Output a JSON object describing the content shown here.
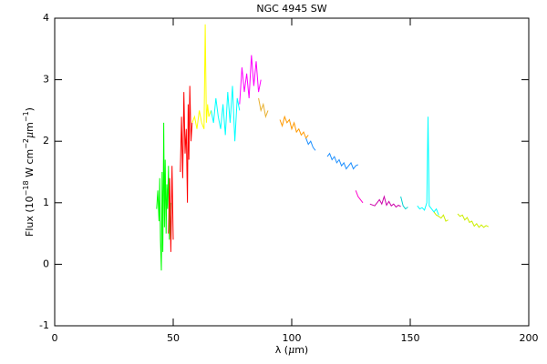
{
  "chart_data": {
    "type": "line",
    "title": "NGC 4945 SW",
    "xlabel": [
      "λ (",
      "μ",
      "m)"
    ],
    "ylabel": [
      "Flux (10",
      "−18",
      " W cm",
      "−2",
      "μ",
      "m",
      "−1",
      ")"
    ],
    "xlim": [
      0,
      200
    ],
    "xticks": [
      0,
      50,
      100,
      150,
      200
    ],
    "ylim": [
      -1,
      4
    ],
    "yticks": [
      -1,
      0,
      1,
      2,
      3,
      4
    ],
    "series": [
      {
        "color": "#00ff00",
        "x": [
          43,
          43.5,
          44,
          44.3,
          44.6,
          45,
          45.3,
          45.6,
          46,
          46.3,
          46.6,
          47,
          47.3,
          47.6,
          48,
          48.4,
          48.8
        ],
        "values": [
          0.9,
          1.2,
          0.7,
          1.4,
          0.4,
          -0.1,
          1.5,
          0.2,
          2.3,
          0.6,
          1.7,
          0.5,
          1.3,
          0.9,
          1.6,
          0.4,
          1.0
        ]
      },
      {
        "color": "#ff0000",
        "x": [
          48,
          48.5,
          49,
          49.5,
          50
        ],
        "values": [
          0.5,
          1.4,
          0.2,
          1.6,
          0.4
        ]
      },
      {
        "color": "#ff0000",
        "x": [
          53,
          53.5,
          54,
          54.5,
          55,
          55.5,
          56,
          56.3,
          56.6,
          57,
          57.5,
          58
        ],
        "values": [
          1.5,
          2.4,
          1.4,
          2.8,
          1.8,
          2.2,
          1.0,
          2.6,
          1.7,
          2.9,
          2.0,
          2.3
        ]
      },
      {
        "color": "#ffff00",
        "x": [
          58,
          59,
          60,
          61,
          62,
          63,
          63.5,
          64,
          64.5,
          65,
          66
        ],
        "values": [
          2.3,
          2.4,
          2.2,
          2.5,
          2.3,
          2.2,
          3.9,
          2.3,
          2.6,
          2.4,
          2.5
        ]
      },
      {
        "color": "#00ffff",
        "x": [
          66,
          67,
          68,
          69,
          70,
          71,
          72,
          73,
          74,
          75,
          76,
          77,
          78
        ],
        "values": [
          2.5,
          2.3,
          2.7,
          2.4,
          2.2,
          2.6,
          2.1,
          2.8,
          2.3,
          2.9,
          2.0,
          2.7,
          2.5
        ]
      },
      {
        "color": "#ff00ff",
        "x": [
          78,
          79,
          80,
          81,
          82,
          83,
          84,
          85,
          86,
          87
        ],
        "values": [
          2.6,
          3.2,
          2.8,
          3.1,
          2.7,
          3.4,
          2.9,
          3.3,
          2.8,
          3.0
        ]
      },
      {
        "color": "#e8b030",
        "x": [
          86,
          87,
          88,
          89,
          90
        ],
        "values": [
          2.7,
          2.5,
          2.6,
          2.4,
          2.5
        ]
      },
      {
        "color": "#ff9900",
        "x": [
          95,
          96,
          97,
          98,
          99,
          100,
          101,
          102,
          103,
          104,
          105,
          106,
          107
        ],
        "values": [
          2.35,
          2.25,
          2.4,
          2.3,
          2.35,
          2.2,
          2.3,
          2.15,
          2.2,
          2.1,
          2.15,
          2.05,
          2.1
        ]
      },
      {
        "color": "#1e90ff",
        "x": [
          106,
          107,
          108,
          109,
          110
        ],
        "values": [
          2.05,
          1.95,
          2.0,
          1.9,
          1.85
        ]
      },
      {
        "color": "#1e90ff",
        "x": [
          115,
          116,
          117,
          118,
          119,
          120,
          121,
          122,
          123,
          124,
          125,
          126,
          127,
          128
        ],
        "values": [
          1.75,
          1.8,
          1.7,
          1.75,
          1.65,
          1.7,
          1.6,
          1.65,
          1.55,
          1.6,
          1.65,
          1.55,
          1.6,
          1.62
        ]
      },
      {
        "color": "#ff00cc",
        "x": [
          127,
          128,
          129,
          130
        ],
        "values": [
          1.2,
          1.1,
          1.05,
          1.0
        ]
      },
      {
        "color": "#cc00aa",
        "x": [
          133,
          135,
          137,
          138,
          139,
          140,
          141,
          142,
          143,
          144,
          145,
          146
        ],
        "values": [
          0.98,
          0.95,
          1.05,
          0.98,
          1.1,
          0.96,
          1.02,
          0.95,
          0.98,
          0.93,
          0.96,
          0.94
        ]
      },
      {
        "color": "#00d0d0",
        "x": [
          146,
          147,
          148,
          149
        ],
        "values": [
          1.1,
          0.95,
          0.9,
          0.93
        ]
      },
      {
        "color": "#00ffff",
        "x": [
          153,
          154,
          155,
          156,
          157,
          157.5,
          158,
          159,
          160,
          161,
          162
        ],
        "values": [
          0.95,
          0.9,
          0.92,
          0.88,
          1.0,
          2.4,
          0.95,
          0.9,
          0.85,
          0.9,
          0.8
        ]
      },
      {
        "color": "#ccee00",
        "x": [
          160,
          161,
          162,
          163,
          164,
          165,
          166
        ],
        "values": [
          0.85,
          0.8,
          0.78,
          0.75,
          0.8,
          0.7,
          0.72
        ]
      },
      {
        "color": "#ccee00",
        "x": [
          170,
          171,
          172,
          173,
          174,
          175,
          176,
          177,
          178,
          179,
          180,
          181,
          182,
          183
        ],
        "values": [
          0.82,
          0.78,
          0.8,
          0.72,
          0.76,
          0.68,
          0.7,
          0.62,
          0.66,
          0.6,
          0.64,
          0.6,
          0.63,
          0.61
        ]
      }
    ]
  }
}
